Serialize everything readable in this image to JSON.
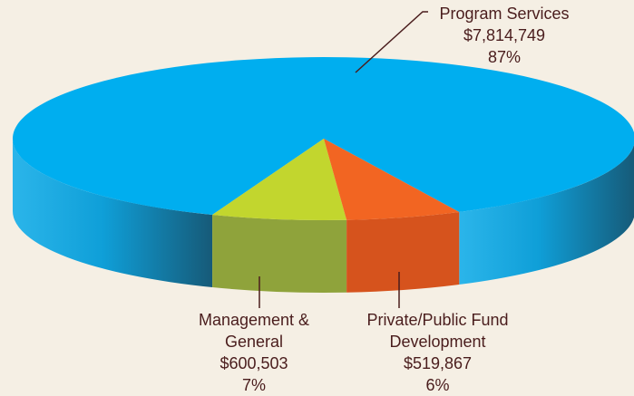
{
  "chart_data": {
    "type": "pie3d",
    "categories": [
      "Program Services",
      "Management & General",
      "Private/Public Fund Development"
    ],
    "values": [
      87,
      7,
      6
    ],
    "value_labels": [
      "87%",
      "7%",
      "6%"
    ],
    "amounts": [
      7814749,
      600503,
      519867
    ],
    "amount_labels": [
      "$7,814,749",
      "$600,503",
      "$519,867"
    ],
    "colors": [
      "#00aeef",
      "#c2d62e",
      "#f26522"
    ]
  }
}
